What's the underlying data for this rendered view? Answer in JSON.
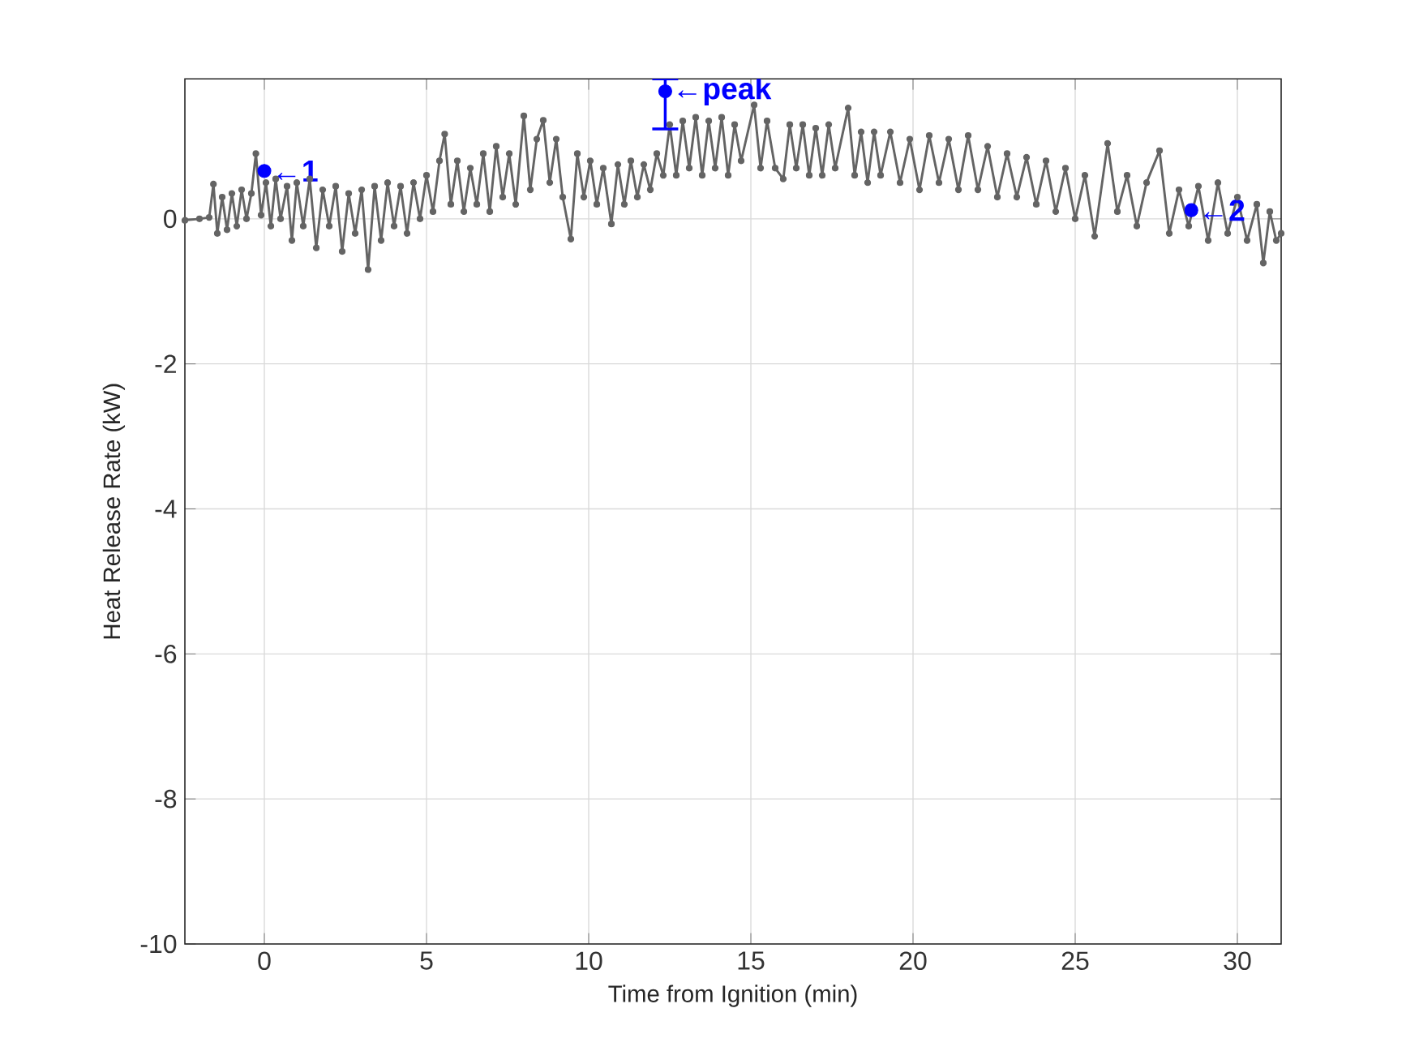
{
  "chart_data": {
    "type": "line",
    "xlabel": "Time from Ignition (min)",
    "ylabel": "Heat Release Rate (kW)",
    "xlim": [
      -2.45,
      31.35
    ],
    "ylim": [
      -10,
      1.93
    ],
    "xticks": [
      0,
      5,
      10,
      15,
      20,
      25,
      30
    ],
    "yticks": [
      -10,
      -8,
      -6,
      -4,
      -2,
      0
    ],
    "grid": true,
    "marker": "circle",
    "line_style": "solid",
    "series": [
      {
        "color": "#646464",
        "x": [
          -2.45,
          -2.0,
          -1.7,
          -1.57,
          -1.45,
          -1.3,
          -1.15,
          -1.0,
          -0.85,
          -0.7,
          -0.55,
          -0.4,
          -0.26,
          -0.1,
          0.05,
          0.2,
          0.35,
          0.5,
          0.7,
          0.85,
          1.0,
          1.2,
          1.4,
          1.6,
          1.8,
          2.0,
          2.2,
          2.4,
          2.6,
          2.8,
          3.0,
          3.2,
          3.4,
          3.6,
          3.8,
          4.0,
          4.2,
          4.4,
          4.6,
          4.8,
          5.0,
          5.2,
          5.4,
          5.56,
          5.75,
          5.95,
          6.15,
          6.35,
          6.55,
          6.75,
          6.95,
          7.15,
          7.35,
          7.55,
          7.75,
          8.0,
          8.2,
          8.4,
          8.6,
          8.8,
          9.0,
          9.2,
          9.45,
          9.65,
          9.85,
          10.05,
          10.25,
          10.45,
          10.7,
          10.9,
          11.1,
          11.3,
          11.5,
          11.7,
          11.9,
          12.1,
          12.3,
          12.5,
          12.7,
          12.9,
          13.1,
          13.3,
          13.5,
          13.7,
          13.9,
          14.1,
          14.3,
          14.5,
          14.7,
          15.1,
          15.3,
          15.5,
          15.75,
          16.0,
          16.2,
          16.4,
          16.6,
          16.8,
          17.0,
          17.2,
          17.4,
          17.6,
          18.0,
          18.2,
          18.4,
          18.6,
          18.8,
          19.0,
          19.3,
          19.6,
          19.9,
          20.2,
          20.5,
          20.8,
          21.1,
          21.4,
          21.7,
          22.0,
          22.3,
          22.6,
          22.9,
          23.2,
          23.5,
          23.8,
          24.1,
          24.4,
          24.7,
          25.0,
          25.3,
          25.6,
          26.0,
          26.3,
          26.6,
          26.9,
          27.2,
          27.6,
          27.9,
          28.2,
          28.5,
          28.8,
          29.1,
          29.4,
          29.7,
          30.0,
          30.3,
          30.6,
          30.8,
          31.0,
          31.2,
          31.35
        ],
        "values": [
          -0.02,
          0.0,
          0.02,
          0.48,
          -0.2,
          0.3,
          -0.15,
          0.35,
          -0.1,
          0.4,
          0.0,
          0.35,
          0.9,
          0.05,
          0.5,
          -0.1,
          0.55,
          0.0,
          0.45,
          -0.3,
          0.5,
          -0.1,
          0.55,
          -0.4,
          0.4,
          -0.1,
          0.45,
          -0.45,
          0.35,
          -0.2,
          0.4,
          -0.7,
          0.45,
          -0.3,
          0.5,
          -0.1,
          0.45,
          -0.2,
          0.5,
          0.0,
          0.6,
          0.1,
          0.8,
          1.17,
          0.2,
          0.8,
          0.1,
          0.7,
          0.2,
          0.9,
          0.1,
          1.0,
          0.3,
          0.9,
          0.2,
          1.42,
          0.4,
          1.1,
          1.36,
          0.5,
          1.1,
          0.3,
          -0.28,
          0.9,
          0.3,
          0.8,
          0.2,
          0.7,
          -0.07,
          0.75,
          0.2,
          0.8,
          0.3,
          0.75,
          0.4,
          0.9,
          0.6,
          1.3,
          0.6,
          1.35,
          0.7,
          1.4,
          0.6,
          1.35,
          0.7,
          1.4,
          0.6,
          1.3,
          0.8,
          1.57,
          0.7,
          1.35,
          0.7,
          0.55,
          1.3,
          0.7,
          1.3,
          0.6,
          1.25,
          0.6,
          1.3,
          0.7,
          1.53,
          0.6,
          1.2,
          0.5,
          1.2,
          0.6,
          1.2,
          0.5,
          1.1,
          0.4,
          1.15,
          0.5,
          1.1,
          0.4,
          1.15,
          0.4,
          1.0,
          0.3,
          0.9,
          0.3,
          0.85,
          0.2,
          0.8,
          0.1,
          0.7,
          0.0,
          0.6,
          -0.24,
          1.04,
          0.1,
          0.6,
          -0.1,
          0.5,
          0.94,
          -0.2,
          0.4,
          -0.1,
          0.45,
          -0.3,
          0.5,
          -0.2,
          0.3,
          -0.3,
          0.2,
          -0.61,
          0.1,
          -0.3,
          -0.2
        ]
      },
      {
        "type": "scatter",
        "color": "#0000ff",
        "x": [
          0,
          12.36,
          28.58
        ],
        "values": [
          0.66,
          1.76,
          0.12
        ],
        "errors": [
          null,
          [
            1.24,
            1.93
          ],
          null
        ]
      }
    ],
    "annotations": [
      {
        "text": "←1",
        "x": 0,
        "y": 0.66
      },
      {
        "text": "←peak",
        "x": 12.36,
        "y": 1.76
      },
      {
        "text": "←2",
        "x": 28.58,
        "y": 0.12
      }
    ]
  }
}
